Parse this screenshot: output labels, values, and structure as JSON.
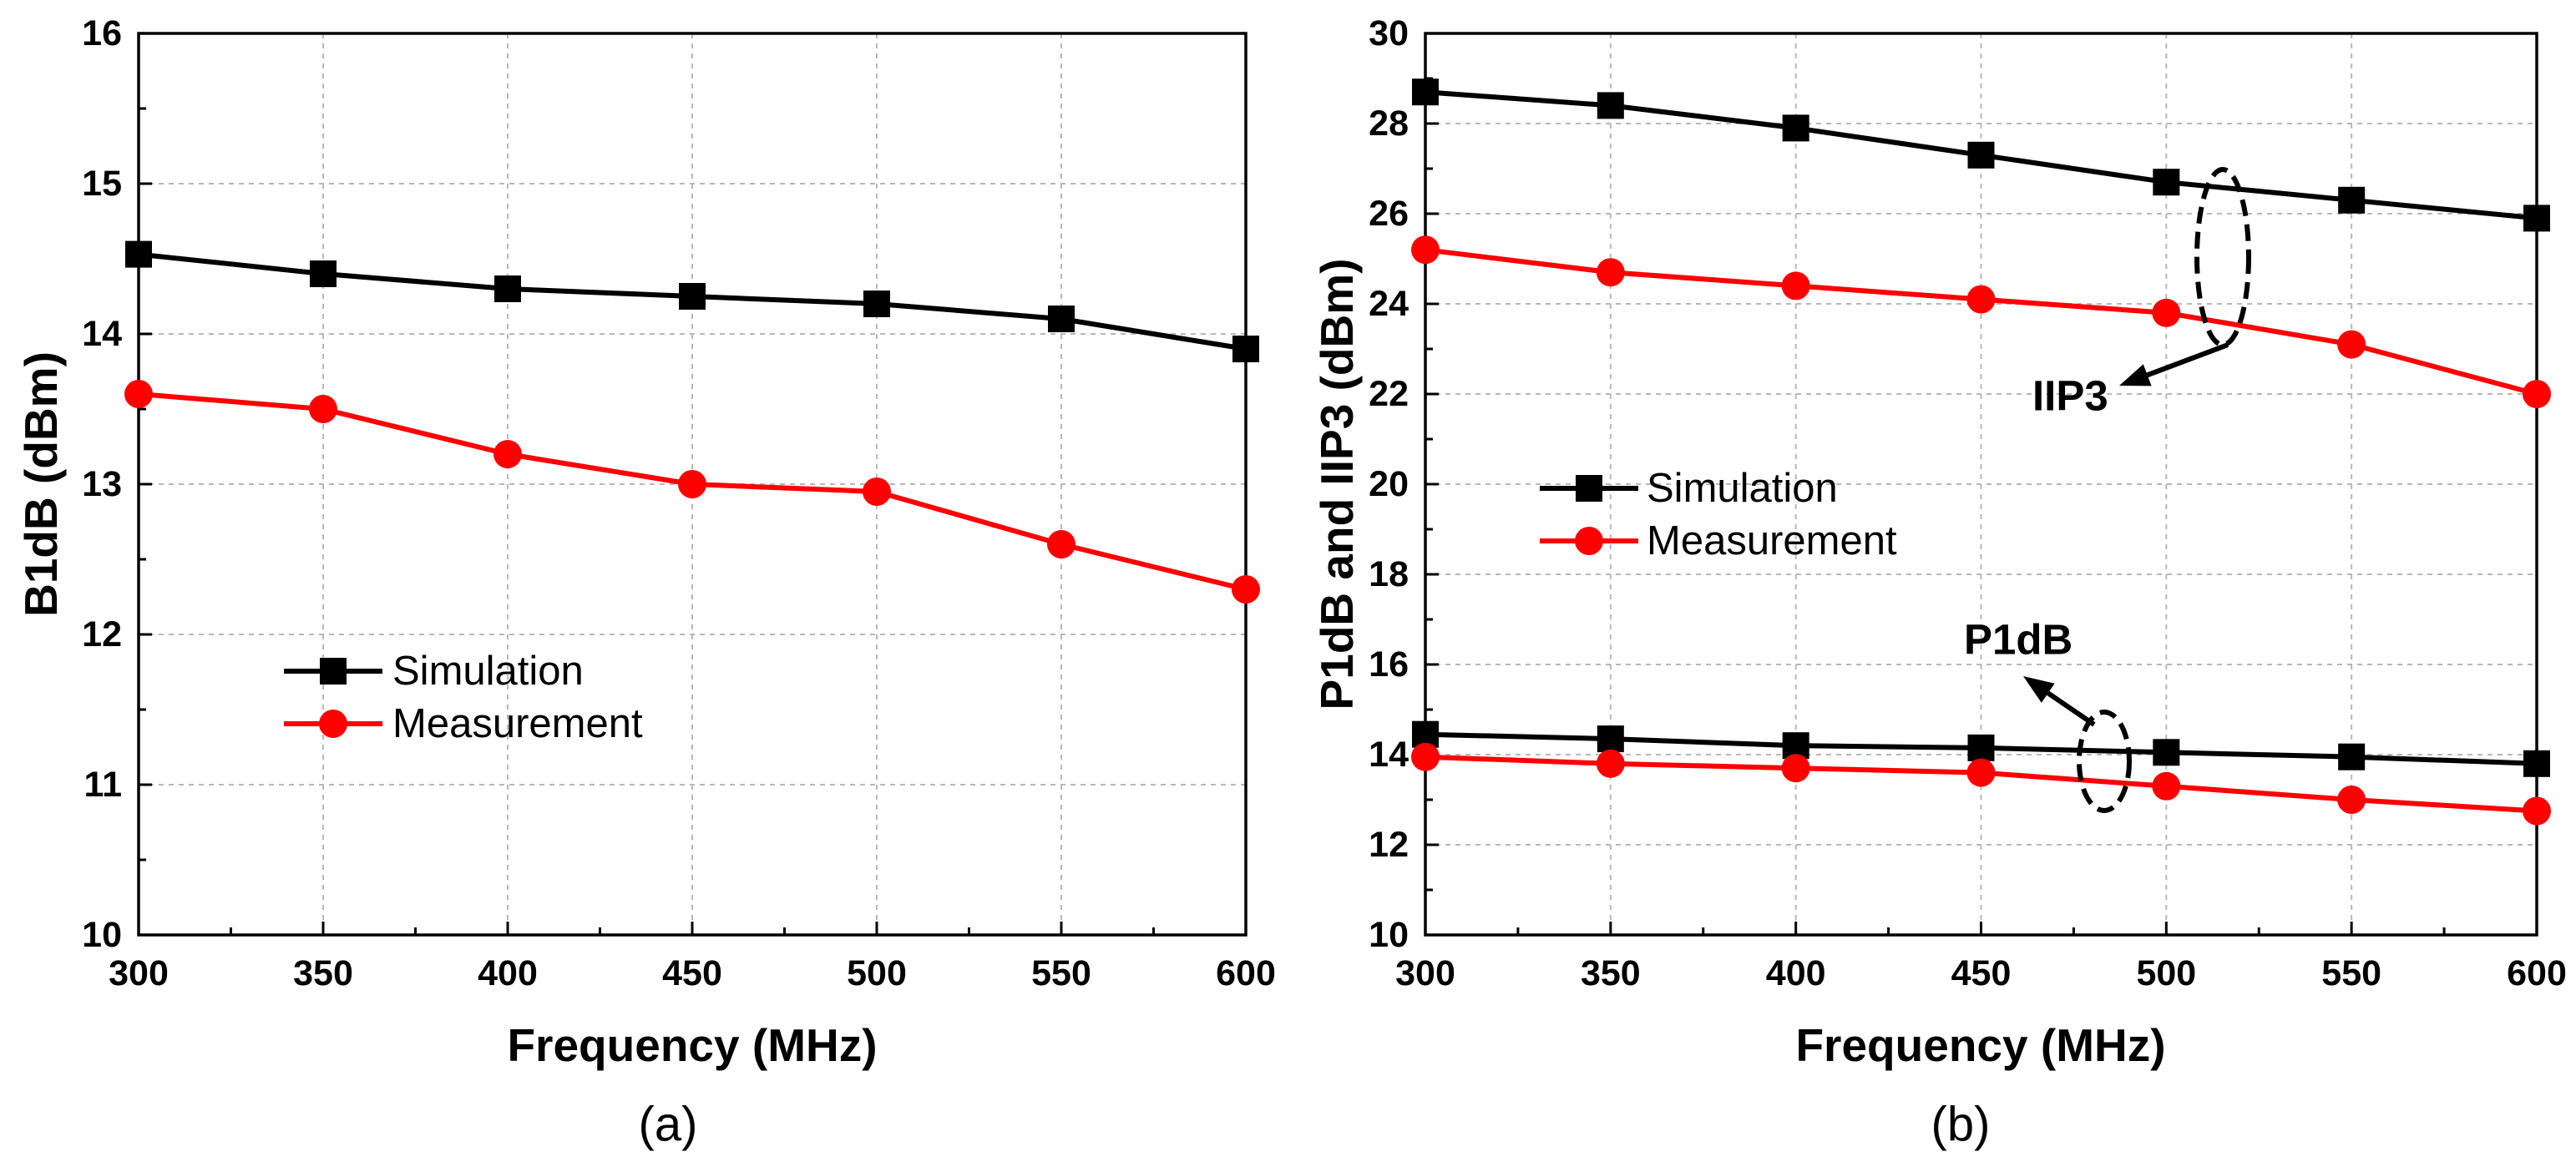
{
  "chart_data": [
    {
      "type": "line",
      "caption": "(a)",
      "xlabel": "Frequency (MHz)",
      "ylabel": "B1dB (dBm)",
      "xlim": [
        300,
        600
      ],
      "ylim": [
        10,
        16
      ],
      "xticks": [
        300,
        350,
        400,
        450,
        500,
        550,
        600
      ],
      "yticks": [
        10,
        11,
        12,
        13,
        14,
        15,
        16
      ],
      "grid": true,
      "legend": {
        "placement": "center-left",
        "entries": [
          {
            "label": "Simulation",
            "color": "#000000",
            "marker": "square"
          },
          {
            "label": "Measurement",
            "color": "#ff0000",
            "marker": "circle"
          }
        ]
      },
      "x": [
        300,
        350,
        400,
        450,
        500,
        550,
        600
      ],
      "series": [
        {
          "legend": 0,
          "values": [
            14.53,
            14.4,
            14.3,
            14.25,
            14.2,
            14.1,
            13.9
          ]
        },
        {
          "legend": 1,
          "values": [
            13.6,
            13.5,
            13.2,
            13.0,
            12.95,
            12.6,
            12.3
          ]
        }
      ]
    },
    {
      "type": "line",
      "caption": "(b)",
      "xlabel": "Frequency (MHz)",
      "ylabel": "P1dB and IIP3 (dBm)",
      "xlim": [
        300,
        600
      ],
      "ylim": [
        10,
        30
      ],
      "xticks": [
        300,
        350,
        400,
        450,
        500,
        550,
        600
      ],
      "yticks": [
        10,
        12,
        14,
        16,
        18,
        20,
        22,
        24,
        26,
        28,
        30
      ],
      "grid": true,
      "legend": {
        "placement": "center-left",
        "entries": [
          {
            "label": "Simulation",
            "color": "#000000",
            "marker": "square"
          },
          {
            "label": "Measurement",
            "color": "#ff0000",
            "marker": "circle"
          }
        ]
      },
      "x": [
        300,
        350,
        400,
        450,
        500,
        550,
        600
      ],
      "groups": [
        {
          "label": "IIP3",
          "series": [
            {
              "legend": 0,
              "values": [
                28.7,
                28.4,
                27.9,
                27.3,
                26.7,
                26.3,
                25.9
              ]
            },
            {
              "legend": 1,
              "values": [
                25.2,
                24.7,
                24.4,
                24.1,
                23.8,
                23.1,
                22.0
              ]
            }
          ]
        },
        {
          "label": "P1dB",
          "series": [
            {
              "legend": 0,
              "values": [
                14.45,
                14.35,
                14.2,
                14.15,
                14.05,
                13.95,
                13.8
              ]
            },
            {
              "legend": 1,
              "values": [
                13.95,
                13.8,
                13.7,
                13.6,
                13.3,
                13.0,
                12.75
              ]
            }
          ]
        }
      ]
    }
  ]
}
